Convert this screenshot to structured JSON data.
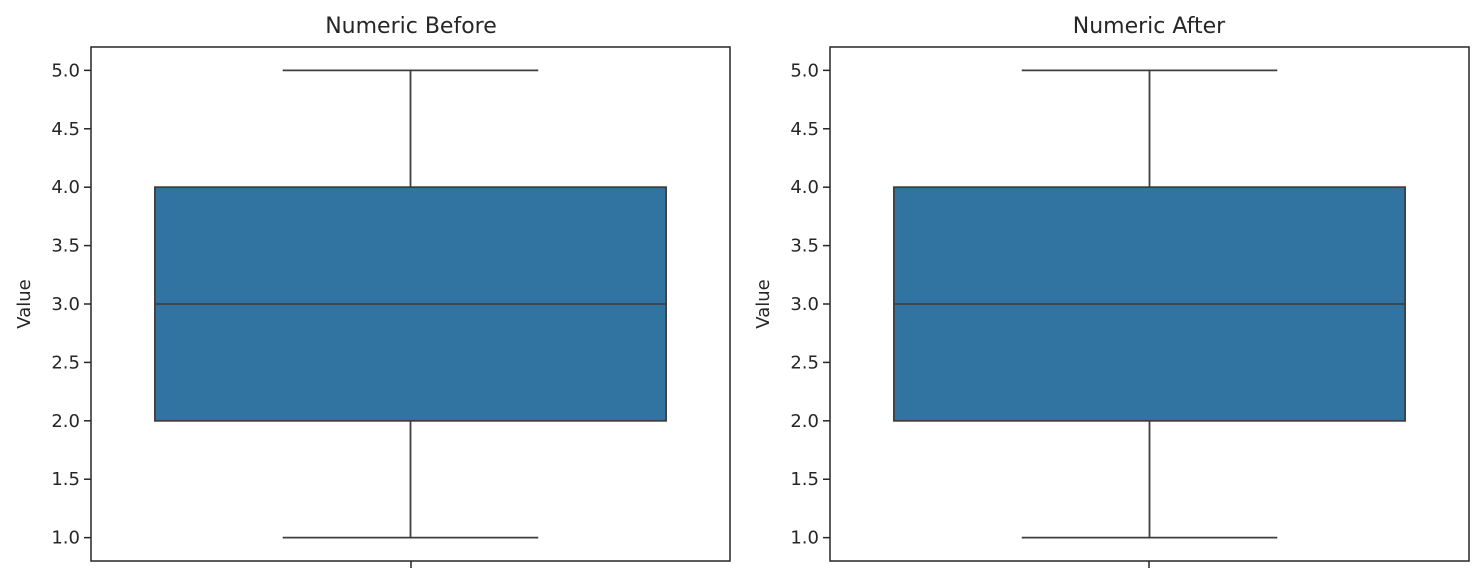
{
  "chart_data": [
    {
      "type": "box",
      "title": "Numeric Before",
      "ylabel": "Value",
      "xlabel": "",
      "ylim": [
        0.8,
        5.2
      ],
      "yticks": [
        1.0,
        1.5,
        2.0,
        2.5,
        3.0,
        3.5,
        4.0,
        4.5,
        5.0
      ],
      "ytick_labels": [
        "1.0",
        "1.5",
        "2.0",
        "2.5",
        "3.0",
        "3.5",
        "4.0",
        "4.5",
        "5.0"
      ],
      "grid": false,
      "box": {
        "whisker_low": 1.0,
        "q1": 2.0,
        "median": 3.0,
        "q3": 4.0,
        "whisker_high": 5.0,
        "color": "#3274a1"
      }
    },
    {
      "type": "box",
      "title": "Numeric After",
      "ylabel": "Value",
      "xlabel": "",
      "ylim": [
        0.8,
        5.2
      ],
      "yticks": [
        1.0,
        1.5,
        2.0,
        2.5,
        3.0,
        3.5,
        4.0,
        4.5,
        5.0
      ],
      "ytick_labels": [
        "1.0",
        "1.5",
        "2.0",
        "2.5",
        "3.0",
        "3.5",
        "4.0",
        "4.5",
        "5.0"
      ],
      "grid": false,
      "box": {
        "whisker_low": 1.0,
        "q1": 2.0,
        "median": 3.0,
        "q3": 4.0,
        "whisker_high": 5.0,
        "color": "#3274a1"
      }
    }
  ],
  "colors": {
    "line": "#3f3f3f",
    "axes": "#262626"
  }
}
